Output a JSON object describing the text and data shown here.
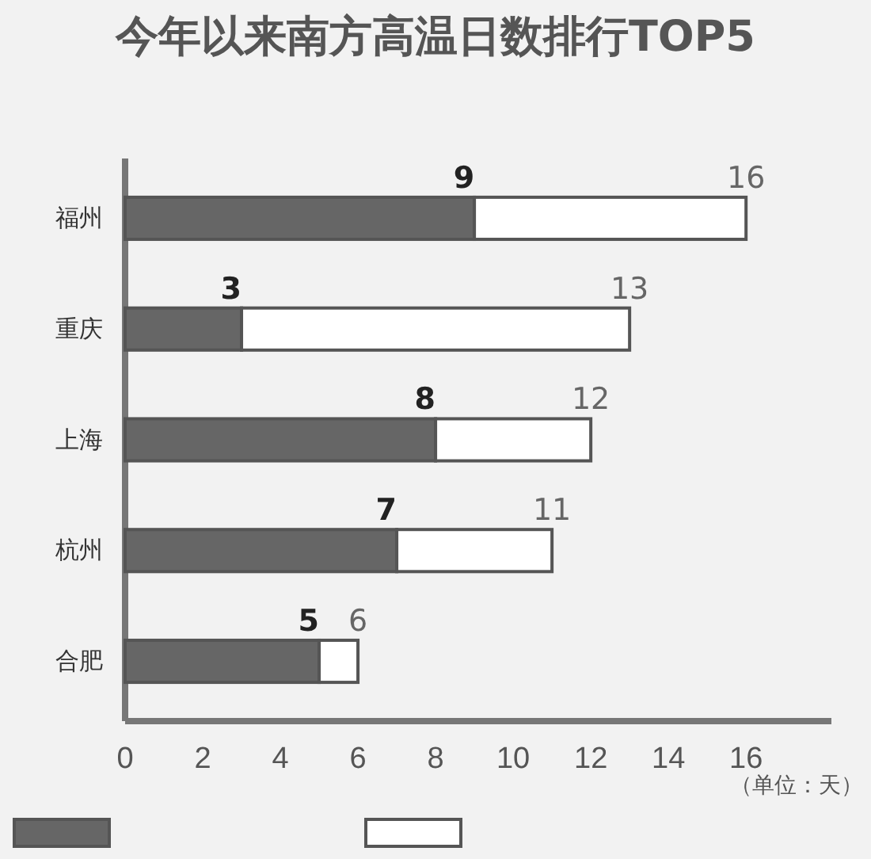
{
  "chart_data": {
    "type": "bar",
    "orientation": "horizontal",
    "stacked": true,
    "title": "今年以来南方高温日数排行TOP5",
    "categories": [
      "福州",
      "重庆",
      "上海",
      "杭州",
      "合肥"
    ],
    "series": [
      {
        "color": "#666666",
        "values": [
          9,
          3,
          8,
          7,
          5
        ],
        "value_labels": [
          "9",
          "3",
          "8",
          "7",
          "5"
        ]
      },
      {
        "color": "#ffffff",
        "values": [
          7,
          10,
          4,
          4,
          1
        ]
      }
    ],
    "totals": [
      "16",
      "13",
      "12",
      "11",
      "6"
    ],
    "xlim": [
      0,
      18.2
    ],
    "xticks": [
      0,
      2,
      4,
      6,
      8,
      10,
      12,
      14,
      16
    ],
    "annotations": [
      "（单位：天）"
    ],
    "grid": false
  }
}
